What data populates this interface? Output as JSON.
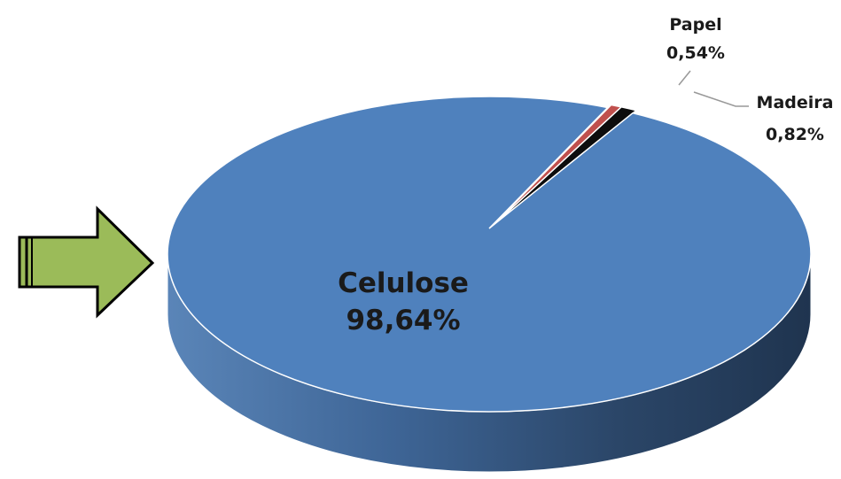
{
  "chart_data": {
    "type": "pie",
    "style": "3d",
    "title": "",
    "slices": [
      {
        "name": "Celulose",
        "value": 98.64,
        "value_label": "98,64%",
        "color": "#4f81bd",
        "side_color": "#2f4a6e"
      },
      {
        "name": "Papel",
        "value": 0.54,
        "value_label": "0,54%",
        "color": "#c0504d",
        "side_color": "#7a2f2d"
      },
      {
        "name": "Madeira",
        "value": 0.82,
        "value_label": "0,82%",
        "color": "#0d0d0d",
        "side_color": "#000000"
      }
    ],
    "legend": "none",
    "pointer_color": "#9bbb59"
  }
}
